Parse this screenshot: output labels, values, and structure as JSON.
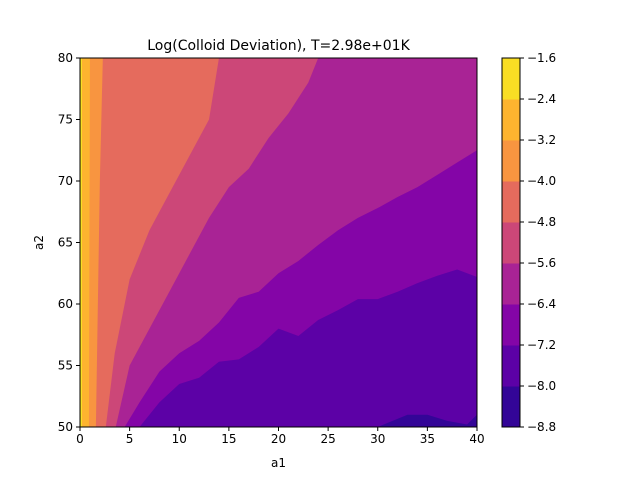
{
  "chart_data": {
    "type": "contour",
    "title": "Log(Colloid Deviation), T=2.98e+01K",
    "xlabel": "a1",
    "ylabel": "a2",
    "xlim": [
      0,
      40
    ],
    "ylim": [
      50,
      80
    ],
    "xticks": [
      "0",
      "5",
      "10",
      "15",
      "20",
      "25",
      "30",
      "35",
      "40"
    ],
    "yticks": [
      "50",
      "55",
      "60",
      "65",
      "70",
      "75",
      "80"
    ],
    "colorbar": {
      "levels": [
        -8.8,
        -8.0,
        -7.2,
        -6.4,
        -5.6,
        -4.8,
        -4.0,
        -3.2,
        -2.4,
        -1.6
      ],
      "labels": [
        "-8.8",
        "-8.0",
        "-7.2",
        "-6.4",
        "-5.6",
        "-4.8",
        "-4.0",
        "-3.2",
        "-2.4",
        "-1.6"
      ],
      "colors": [
        "#330597",
        "#5c01a6",
        "#8405a7",
        "#a92395",
        "#cc4778",
        "#e56b5d",
        "#f89540",
        "#fdb42f",
        "#f9de24"
      ]
    },
    "contours": [
      {
        "level": -8.0,
        "points": [
          [
            6,
            50
          ],
          [
            8,
            52
          ],
          [
            10,
            53.5
          ],
          [
            12,
            54
          ],
          [
            14,
            55.3
          ],
          [
            16,
            55.5
          ],
          [
            18,
            56.5
          ],
          [
            20,
            58
          ],
          [
            22,
            57.4
          ],
          [
            24,
            58.7
          ],
          [
            26,
            59.5
          ],
          [
            28,
            60.4
          ],
          [
            30,
            60.4
          ],
          [
            32,
            61
          ],
          [
            34,
            61.7
          ],
          [
            36,
            62.3
          ],
          [
            38,
            62.8
          ],
          [
            40,
            62.2
          ]
        ]
      },
      {
        "level": -7.2,
        "points": [
          [
            4.5,
            50
          ],
          [
            6,
            52
          ],
          [
            8,
            54.5
          ],
          [
            10,
            56
          ],
          [
            12,
            57
          ],
          [
            14,
            58.5
          ],
          [
            16,
            60.5
          ],
          [
            18,
            61
          ],
          [
            20,
            62.5
          ],
          [
            22,
            63.5
          ],
          [
            24,
            64.8
          ],
          [
            26,
            66
          ],
          [
            28,
            67
          ],
          [
            30,
            67.8
          ],
          [
            32,
            68.7
          ],
          [
            34,
            69.5
          ],
          [
            36,
            70.5
          ],
          [
            38,
            71.5
          ],
          [
            40,
            72.5
          ]
        ]
      },
      {
        "level": -6.4,
        "points": [
          [
            3.6,
            50
          ],
          [
            5,
            55
          ],
          [
            7,
            58
          ],
          [
            9,
            61
          ],
          [
            11,
            64
          ],
          [
            13,
            67
          ],
          [
            15,
            69.5
          ],
          [
            17,
            71
          ],
          [
            19,
            73.5
          ],
          [
            21,
            75.5
          ],
          [
            23,
            78
          ],
          [
            24,
            80
          ]
        ]
      },
      {
        "level": -5.6,
        "points": [
          [
            2.6,
            50
          ],
          [
            3.5,
            56
          ],
          [
            5,
            62
          ],
          [
            7,
            66
          ],
          [
            9,
            69
          ],
          [
            11,
            72
          ],
          [
            13,
            75
          ],
          [
            14,
            80
          ]
        ]
      },
      {
        "level": -4.8,
        "points": [
          [
            1.6,
            50
          ],
          [
            1.8,
            60
          ],
          [
            2,
            70
          ],
          [
            2.3,
            80
          ]
        ]
      },
      {
        "level": -4.0,
        "points": [
          [
            0.9,
            50
          ],
          [
            0.95,
            65
          ],
          [
            1,
            80
          ]
        ]
      },
      {
        "level": -3.2,
        "points": [
          [
            0.2,
            50
          ],
          [
            0.2,
            65
          ],
          [
            0.2,
            80
          ]
        ]
      }
    ],
    "bottom_pocket": {
      "level": -8.8,
      "points": [
        [
          30,
          50
        ],
        [
          33,
          51
        ],
        [
          35,
          51
        ],
        [
          37,
          50.5
        ],
        [
          39,
          50.2
        ],
        [
          40,
          51
        ]
      ]
    }
  }
}
